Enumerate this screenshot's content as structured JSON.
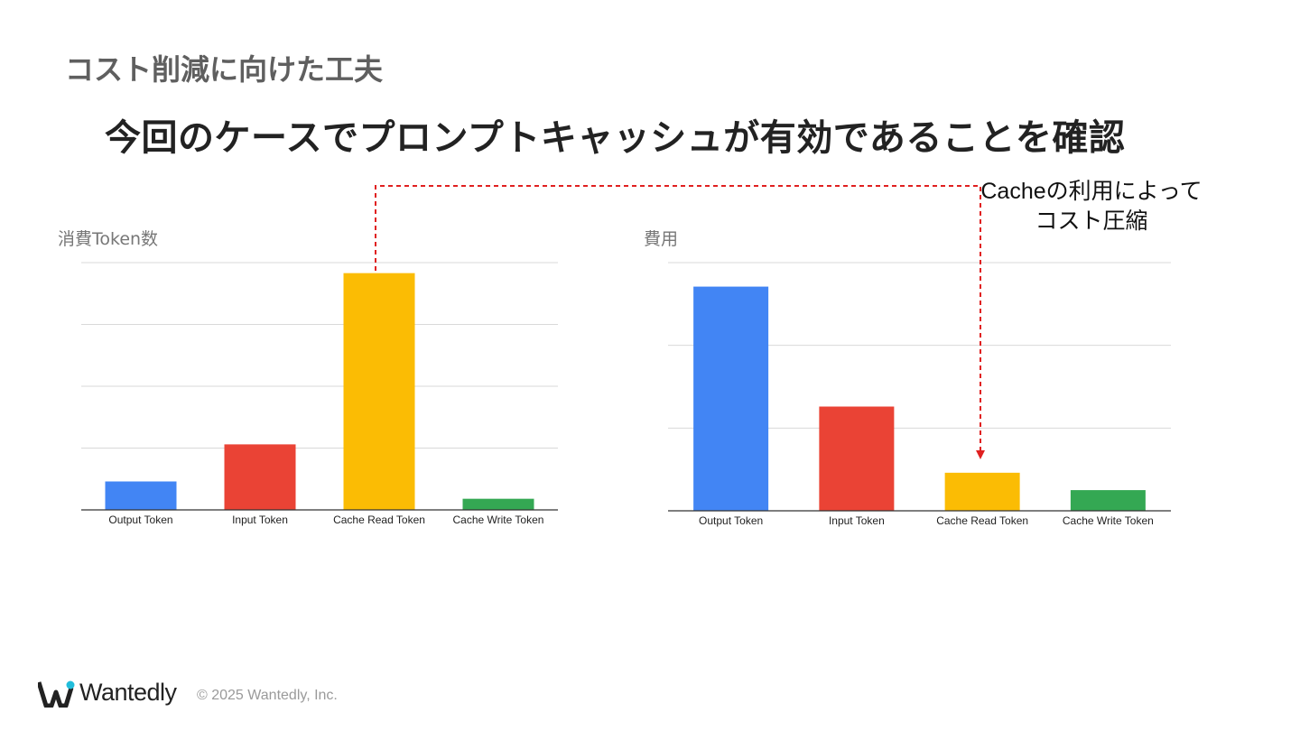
{
  "slide": {
    "section_title": "コスト削減に向けた工夫",
    "headline": "今回のケースでプロンプトキャッシュが有効であることを確認",
    "callout": "Cacheの利用によってコスト圧縮",
    "footer": {
      "brand": "Wantedly",
      "copyright": "© 2025 Wantedly, Inc."
    }
  },
  "chart_data": [
    {
      "type": "bar",
      "title": "消費Token数",
      "categories": [
        "Output Token",
        "Input Token",
        "Cache Read Token",
        "Cache Write Token"
      ],
      "values": [
        0.46,
        1.06,
        3.83,
        0.18
      ],
      "colors": [
        "#4285f4",
        "#ea4335",
        "#fbbc04",
        "#34a853"
      ],
      "ylim": [
        0,
        4
      ],
      "gridlines": 4,
      "axis_labels_visible": false
    },
    {
      "type": "bar",
      "title": "費用",
      "categories": [
        "Output Token",
        "Input Token",
        "Cache Read Token",
        "Cache Write Token"
      ],
      "values": [
        2.71,
        1.26,
        0.46,
        0.25
      ],
      "colors": [
        "#4285f4",
        "#ea4335",
        "#fbbc04",
        "#34a853"
      ],
      "ylim": [
        0,
        3
      ],
      "gridlines": 3,
      "axis_labels_visible": false
    }
  ]
}
